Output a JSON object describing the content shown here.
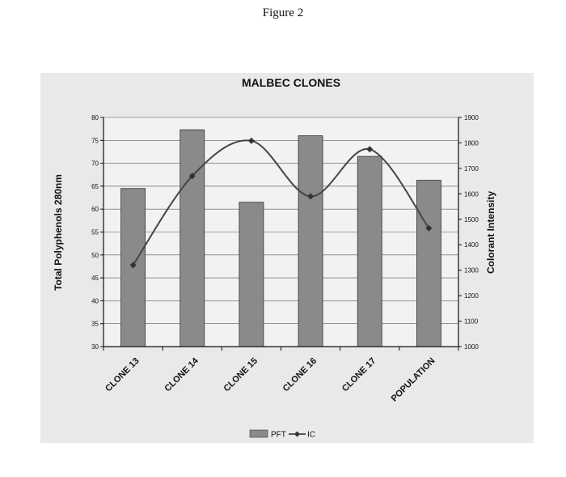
{
  "figure_label": "Figure 2",
  "chart_data": {
    "type": "bar",
    "title": "MALBEC CLONES",
    "categories": [
      "CLONE 13",
      "CLONE 14",
      "CLONE 15",
      "CLONE 16",
      "CLONE 17",
      "POPULATION"
    ],
    "series": [
      {
        "name": "PFT",
        "type": "bar",
        "axis": "left",
        "color": "#8a8a8a",
        "values": [
          64.5,
          77.3,
          61.5,
          76.0,
          71.5,
          66.3
        ]
      },
      {
        "name": "IC",
        "type": "line",
        "axis": "right",
        "marker": "diamond",
        "color": "#444444",
        "values": [
          1320,
          1670,
          1808,
          1590,
          1775,
          1465
        ]
      }
    ],
    "ylabel": "Total Polyphenols 280nm",
    "ylim": [
      30,
      80
    ],
    "yticks": [
      "30",
      "35",
      "40",
      "45",
      "50",
      "55",
      "60",
      "65",
      "70",
      "75",
      "80"
    ],
    "y2label": "Colorant Intensity",
    "y2lim": [
      1000,
      1900
    ],
    "y2ticks": [
      "1000",
      "1100",
      "1200",
      "1300",
      "1400",
      "1500",
      "1600",
      "1700",
      "1800",
      "1900"
    ],
    "grid": true,
    "legend_position": "bottom"
  }
}
